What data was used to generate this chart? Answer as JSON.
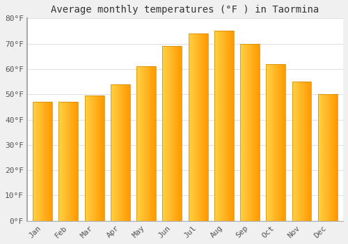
{
  "title": "Average monthly temperatures (°F ) in Taormina",
  "months": [
    "Jan",
    "Feb",
    "Mar",
    "Apr",
    "May",
    "Jun",
    "Jul",
    "Aug",
    "Sep",
    "Oct",
    "Nov",
    "Dec"
  ],
  "values": [
    47,
    47,
    49.5,
    54,
    61,
    69,
    74,
    75,
    70,
    62,
    55,
    50
  ],
  "bar_color_left": "#FFCC44",
  "bar_color_right": "#FF9900",
  "background_color": "#f0f0f0",
  "plot_bg_color": "#ffffff",
  "ylim": [
    0,
    80
  ],
  "yticks": [
    0,
    10,
    20,
    30,
    40,
    50,
    60,
    70,
    80
  ],
  "ytick_labels": [
    "0°F",
    "10°F",
    "20°F",
    "30°F",
    "40°F",
    "50°F",
    "60°F",
    "70°F",
    "80°F"
  ],
  "title_fontsize": 10,
  "tick_fontsize": 8,
  "grid_color": "#e0e0e0",
  "spine_color": "#aaaaaa",
  "bar_width": 0.75
}
